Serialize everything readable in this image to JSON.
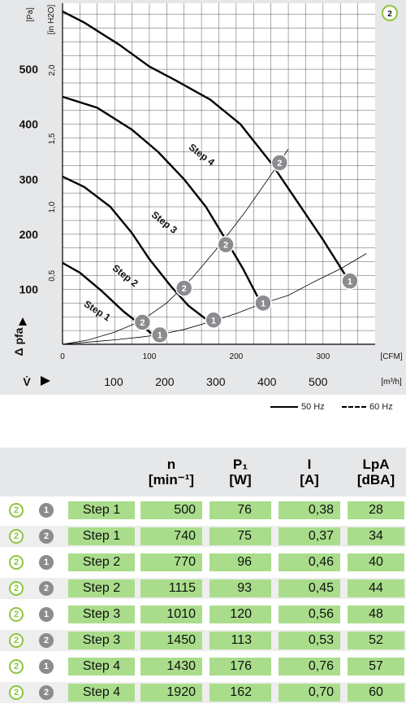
{
  "chart_data": {
    "type": "line",
    "badge": "2",
    "ylabel_left_unit": "[Pa]",
    "ylabel_right_unit": "[in H2O]",
    "y_axis_title": "Δ pfa",
    "x_axis_unit": "[CFM]",
    "x2_axis_unit": "[m³/h]",
    "x2_axis_symbol": "V̇",
    "xlim_cfm": [
      0,
      360
    ],
    "ylim_pa": [
      0,
      620
    ],
    "x_ticks_cfm": [
      0,
      100,
      200,
      300
    ],
    "x_ticks_m3h": [
      100,
      200,
      300,
      400,
      500
    ],
    "y_ticks_pa": [
      100,
      200,
      300,
      400,
      500
    ],
    "y_ticks_inh2o": [
      "0,5",
      "1,0",
      "1,5",
      "2,0"
    ],
    "grid": true,
    "series": [
      {
        "name": "Step 1",
        "x": [
          0,
          20,
          45,
          70,
          90,
          110
        ],
        "y": [
          148,
          130,
          97,
          60,
          35,
          10
        ]
      },
      {
        "name": "Step 2",
        "x": [
          0,
          25,
          55,
          80,
          100,
          125,
          145,
          170
        ],
        "y": [
          305,
          286,
          250,
          202,
          155,
          105,
          70,
          40
        ]
      },
      {
        "name": "Step 3",
        "x": [
          0,
          40,
          80,
          110,
          140,
          165,
          190,
          208,
          230
        ],
        "y": [
          450,
          430,
          390,
          350,
          300,
          250,
          185,
          137,
          70
        ]
      },
      {
        "name": "Step 4",
        "x": [
          0,
          25,
          65,
          100,
          130,
          170,
          205,
          240,
          270,
          300,
          330
        ],
        "y": [
          605,
          585,
          545,
          505,
          480,
          445,
          400,
          330,
          260,
          190,
          115
        ]
      }
    ],
    "system_curves": [
      {
        "x": [
          0,
          30,
          60,
          90,
          110,
          140,
          175,
          200,
          230,
          260,
          290,
          320,
          350
        ],
        "y": [
          0,
          4,
          8,
          13,
          17,
          27,
          43,
          56,
          74,
          89,
          114,
          137,
          165
        ]
      },
      {
        "x": [
          0,
          30,
          60,
          90,
          120,
          150,
          180,
          210,
          240,
          260
        ],
        "y": [
          0,
          8,
          22,
          42,
          75,
          122,
          178,
          240,
          308,
          355
        ]
      }
    ],
    "operating_points": [
      {
        "label": "1",
        "x": 112,
        "y": 17
      },
      {
        "label": "2",
        "x": 92,
        "y": 40
      },
      {
        "label": "1",
        "x": 174,
        "y": 44
      },
      {
        "label": "2",
        "x": 140,
        "y": 102
      },
      {
        "label": "1",
        "x": 231,
        "y": 75
      },
      {
        "label": "2",
        "x": 188,
        "y": 181
      },
      {
        "label": "1",
        "x": 331,
        "y": 115
      },
      {
        "label": "2",
        "x": 250,
        "y": 330
      }
    ],
    "legend": [
      {
        "label": "50 Hz",
        "style": "solid"
      },
      {
        "label": "60 Hz",
        "style": "dash"
      }
    ]
  },
  "table": {
    "headers": [
      {
        "line1": "n",
        "line2": "[min⁻¹]"
      },
      {
        "line1": "P₁",
        "line2": "[W]"
      },
      {
        "line1": "I",
        "line2": "[A]"
      },
      {
        "line1": "LpA",
        "line2": "[dBA]"
      }
    ],
    "rows": [
      {
        "icon": "2",
        "point": "1",
        "step": "Step 1",
        "n": "500",
        "p": "76",
        "i": "0,38",
        "lpa": "28"
      },
      {
        "icon": "2",
        "point": "2",
        "step": "Step 1",
        "n": "740",
        "p": "75",
        "i": "0,37",
        "lpa": "34"
      },
      {
        "icon": "2",
        "point": "1",
        "step": "Step 2",
        "n": "770",
        "p": "96",
        "i": "0,46",
        "lpa": "40"
      },
      {
        "icon": "2",
        "point": "2",
        "step": "Step 2",
        "n": "1115",
        "p": "93",
        "i": "0,45",
        "lpa": "44"
      },
      {
        "icon": "2",
        "point": "1",
        "step": "Step 3",
        "n": "1010",
        "p": "120",
        "i": "0,56",
        "lpa": "48"
      },
      {
        "icon": "2",
        "point": "2",
        "step": "Step 3",
        "n": "1450",
        "p": "113",
        "i": "0,53",
        "lpa": "52"
      },
      {
        "icon": "2",
        "point": "1",
        "step": "Step 4",
        "n": "1430",
        "p": "176",
        "i": "0,76",
        "lpa": "57"
      },
      {
        "icon": "2",
        "point": "2",
        "step": "Step 4",
        "n": "1920",
        "p": "162",
        "i": "0,70",
        "lpa": "60"
      }
    ]
  },
  "colors": {
    "accent": "#8cc63f",
    "cell": "#a9dd8b",
    "panel": "#e6e7e9",
    "marker": "#8a8c8f"
  }
}
